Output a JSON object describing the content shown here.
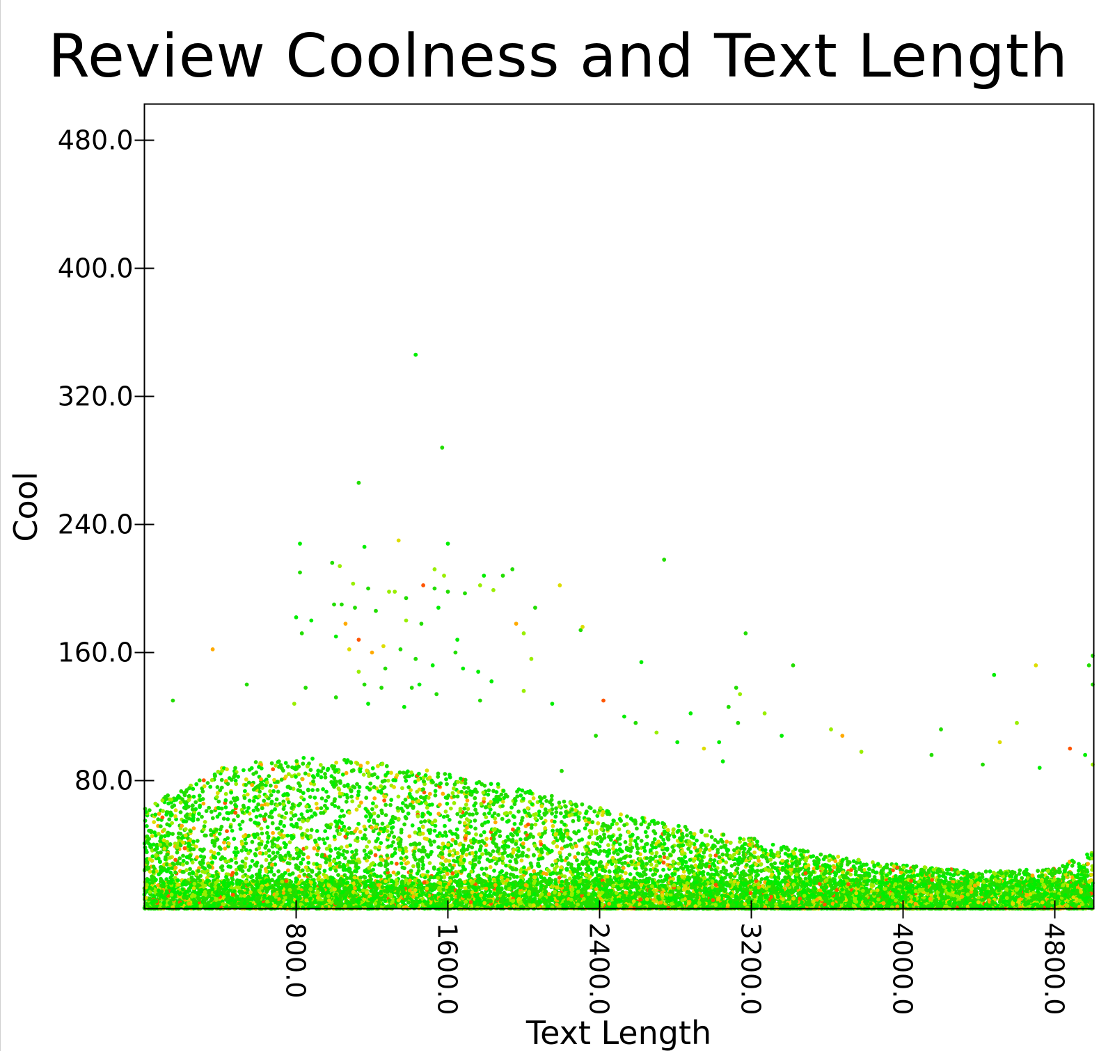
{
  "chart_data": {
    "type": "scatter",
    "title": "Review Coolness and Text Length",
    "xlabel": "Text Length",
    "ylabel": "Cool",
    "xlim": [
      0,
      5000
    ],
    "ylim": [
      0,
      500
    ],
    "x_ticks": [
      800.0,
      1600.0,
      2400.0,
      3200.0,
      4000.0,
      4800.0
    ],
    "x_tick_labels": [
      "800.0",
      "1600.0",
      "2400.0",
      "3200.0",
      "4000.0",
      "4800.0"
    ],
    "y_ticks": [
      80.0,
      160.0,
      240.0,
      320.0,
      400.0,
      480.0
    ],
    "y_tick_labels": [
      "80.0",
      "160.0",
      "240.0",
      "320.0",
      "400.0",
      "480.0"
    ],
    "grid": false,
    "point_colors": [
      "#22dd00",
      "#00ee00",
      "#99ee00",
      "#dddd00",
      "#ffaa00",
      "#ff5500"
    ],
    "points": [
      [
        1430,
        346
      ],
      [
        1570,
        288
      ],
      [
        1130,
        266
      ],
      [
        1340,
        230
      ],
      [
        820,
        228
      ],
      [
        1160,
        226
      ],
      [
        1600,
        228
      ],
      [
        2740,
        218
      ],
      [
        1530,
        212
      ],
      [
        990,
        216
      ],
      [
        1030,
        214
      ],
      [
        1580,
        208
      ],
      [
        1940,
        212
      ],
      [
        1790,
        208
      ],
      [
        1890,
        208
      ],
      [
        1770,
        202
      ],
      [
        820,
        210
      ],
      [
        1100,
        203
      ],
      [
        1180,
        200
      ],
      [
        1290,
        198
      ],
      [
        1470,
        202
      ],
      [
        1530,
        200
      ],
      [
        1600,
        198
      ],
      [
        1690,
        197
      ],
      [
        2190,
        202
      ],
      [
        1840,
        199
      ],
      [
        1320,
        198
      ],
      [
        1380,
        194
      ],
      [
        1000,
        190
      ],
      [
        1040,
        190
      ],
      [
        1110,
        188
      ],
      [
        1550,
        188
      ],
      [
        2060,
        188
      ],
      [
        1220,
        186
      ],
      [
        800,
        182
      ],
      [
        880,
        180
      ],
      [
        1060,
        178
      ],
      [
        1380,
        180
      ],
      [
        1460,
        178
      ],
      [
        1960,
        178
      ],
      [
        2300,
        174
      ],
      [
        830,
        172
      ],
      [
        1010,
        170
      ],
      [
        1130,
        168
      ],
      [
        1650,
        168
      ],
      [
        1260,
        164
      ],
      [
        1350,
        162
      ],
      [
        1640,
        160
      ],
      [
        2310,
        176
      ],
      [
        2000,
        172
      ],
      [
        3170,
        172
      ],
      [
        360,
        162
      ],
      [
        1080,
        162
      ],
      [
        1200,
        160
      ],
      [
        1430,
        156
      ],
      [
        1520,
        152
      ],
      [
        1680,
        150
      ],
      [
        2040,
        156
      ],
      [
        2620,
        154
      ],
      [
        3420,
        152
      ],
      [
        1270,
        150
      ],
      [
        1760,
        148
      ],
      [
        1130,
        148
      ],
      [
        4700,
        152
      ],
      [
        4980,
        152
      ],
      [
        5000,
        158
      ],
      [
        4480,
        146
      ],
      [
        1160,
        140
      ],
      [
        1450,
        140
      ],
      [
        1250,
        138
      ],
      [
        1830,
        142
      ],
      [
        2000,
        136
      ],
      [
        3120,
        138
      ],
      [
        3140,
        134
      ],
      [
        5000,
        140
      ],
      [
        540,
        140
      ],
      [
        850,
        138
      ],
      [
        1410,
        138
      ],
      [
        1010,
        132
      ],
      [
        1540,
        134
      ],
      [
        150,
        130
      ],
      [
        790,
        128
      ],
      [
        1180,
        128
      ],
      [
        1370,
        126
      ],
      [
        2420,
        130
      ],
      [
        3080,
        126
      ],
      [
        3270,
        122
      ],
      [
        2880,
        122
      ],
      [
        2530,
        120
      ],
      [
        1770,
        130
      ],
      [
        2150,
        128
      ],
      [
        3130,
        116
      ],
      [
        3030,
        104
      ],
      [
        4200,
        112
      ],
      [
        4600,
        116
      ],
      [
        2590,
        116
      ],
      [
        2700,
        110
      ],
      [
        3360,
        108
      ],
      [
        3620,
        112
      ],
      [
        3680,
        108
      ],
      [
        4150,
        96
      ],
      [
        4420,
        90
      ],
      [
        4510,
        104
      ],
      [
        4880,
        100
      ],
      [
        4960,
        96
      ],
      [
        5000,
        90
      ],
      [
        4720,
        88
      ],
      [
        3780,
        98
      ],
      [
        2380,
        108
      ],
      [
        2810,
        104
      ],
      [
        2950,
        100
      ],
      [
        3050,
        92
      ],
      [
        1270,
        70
      ],
      [
        2200,
        86
      ]
    ],
    "dense_band": {
      "description": "",
      "x_range": [
        0,
        5000
      ],
      "y_upper_profile": [
        [
          0,
          60
        ],
        [
          400,
          85
        ],
        [
          800,
          90
        ],
        [
          1200,
          88
        ],
        [
          1600,
          80
        ],
        [
          2000,
          72
        ],
        [
          2400,
          60
        ],
        [
          2800,
          50
        ],
        [
          3200,
          42
        ],
        [
          3600,
          32
        ],
        [
          4000,
          26
        ],
        [
          4400,
          22
        ],
        [
          4800,
          24
        ],
        [
          5000,
          34
        ]
      ]
    }
  }
}
